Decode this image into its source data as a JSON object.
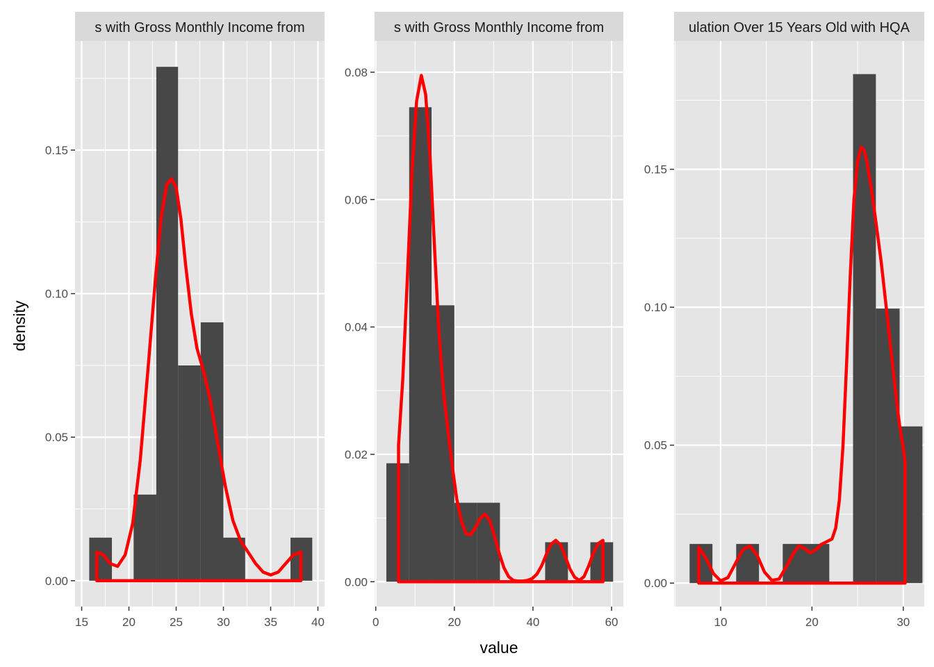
{
  "chart_data": {
    "type": "histogram",
    "xlabel": "value",
    "ylabel": "density",
    "colors": {
      "panel_bg": "#e5e5e5",
      "strip_bg": "#d9d9d9",
      "grid": "#ffffff",
      "bar": "#474747",
      "density": "#ff0000"
    },
    "panels": [
      {
        "strip_title": "s with Gross Monthly Income from",
        "xlim": [
          14.3,
          40.7
        ],
        "ylim": [
          -0.009,
          0.188
        ],
        "xticks": [
          15,
          20,
          25,
          30,
          35,
          40
        ],
        "yticks": [
          0.0,
          0.05,
          0.1,
          0.15
        ],
        "ytick_labels": [
          "0.00",
          "0.05",
          "0.10",
          "0.15"
        ],
        "bars": [
          {
            "x0": 15.8,
            "x1": 18.2,
            "density": 0.015
          },
          {
            "x0": 20.5,
            "x1": 22.9,
            "density": 0.03
          },
          {
            "x0": 22.9,
            "x1": 25.2,
            "density": 0.179
          },
          {
            "x0": 25.2,
            "x1": 27.6,
            "density": 0.075
          },
          {
            "x0": 27.6,
            "x1": 30.0,
            "density": 0.09
          },
          {
            "x0": 30.0,
            "x1": 32.3,
            "density": 0.015
          },
          {
            "x0": 37.1,
            "x1": 39.4,
            "density": 0.015
          }
        ],
        "density": {
          "x": [
            16.6,
            17.3,
            18.0,
            18.8,
            19.6,
            20.4,
            21.2,
            22.0,
            22.8,
            23.4,
            24.0,
            24.5,
            25.0,
            25.5,
            26.0,
            26.6,
            27.2,
            27.9,
            28.6,
            29.4,
            30.2,
            31.0,
            31.8,
            32.6,
            33.4,
            34.2,
            35.0,
            35.8,
            36.6,
            37.4,
            38.2
          ],
          "y": [
            0.01,
            0.009,
            0.006,
            0.005,
            0.009,
            0.02,
            0.042,
            0.073,
            0.105,
            0.126,
            0.138,
            0.14,
            0.137,
            0.126,
            0.11,
            0.093,
            0.081,
            0.073,
            0.063,
            0.048,
            0.033,
            0.021,
            0.014,
            0.01,
            0.006,
            0.003,
            0.002,
            0.003,
            0.006,
            0.009,
            0.01
          ]
        }
      },
      {
        "strip_title": "s with Gross Monthly Income from",
        "xlim": [
          -0.3,
          63.0
        ],
        "ylim": [
          -0.0039,
          0.0849
        ],
        "xticks": [
          0,
          20,
          40,
          60
        ],
        "yticks": [
          0.0,
          0.02,
          0.04,
          0.06,
          0.08
        ],
        "ytick_labels": [
          "0.00",
          "0.02",
          "0.04",
          "0.06",
          "0.08"
        ],
        "bars": [
          {
            "x0": 2.7,
            "x1": 8.5,
            "density": 0.0186
          },
          {
            "x0": 8.5,
            "x1": 14.2,
            "density": 0.0745
          },
          {
            "x0": 14.2,
            "x1": 20.0,
            "density": 0.0434
          },
          {
            "x0": 20.0,
            "x1": 25.8,
            "density": 0.0124
          },
          {
            "x0": 25.8,
            "x1": 31.6,
            "density": 0.0124
          },
          {
            "x0": 43.1,
            "x1": 48.9,
            "density": 0.0062
          },
          {
            "x0": 54.6,
            "x1": 60.4,
            "density": 0.0062
          }
        ],
        "density": {
          "x": [
            5.8,
            6.9,
            8.0,
            9.2,
            10.4,
            11.6,
            12.7,
            13.8,
            14.9,
            16.0,
            17.2,
            18.4,
            19.5,
            20.6,
            21.8,
            23.0,
            24.2,
            25.4,
            26.6,
            27.8,
            29.0,
            30.2,
            31.4,
            32.6,
            33.8,
            35.0,
            36.2,
            37.4,
            38.6,
            39.8,
            41.0,
            42.2,
            43.4,
            44.6,
            45.8,
            47.0,
            48.2,
            49.4,
            50.6,
            51.8,
            53.0,
            54.2,
            55.4,
            56.6,
            57.8
          ],
          "y": [
            0.0215,
            0.032,
            0.047,
            0.064,
            0.0755,
            0.0795,
            0.0765,
            0.067,
            0.053,
            0.04,
            0.03,
            0.0235,
            0.018,
            0.013,
            0.0095,
            0.0075,
            0.0074,
            0.0085,
            0.01,
            0.0106,
            0.0096,
            0.0072,
            0.0045,
            0.0022,
            0.0008,
            0.0002,
            0.0001,
            0.0001,
            0.0002,
            0.0005,
            0.0012,
            0.0025,
            0.0043,
            0.0059,
            0.0065,
            0.0058,
            0.004,
            0.002,
            0.0007,
            0.0002,
            0.0008,
            0.0025,
            0.0045,
            0.006,
            0.0065
          ]
        }
      },
      {
        "strip_title": "ulation Over 15 Years Old with HQA",
        "xlim": [
          4.9,
          32.3
        ],
        "ylim": [
          -0.0085,
          0.1965
        ],
        "xticks": [
          10,
          20,
          30
        ],
        "yticks": [
          0.0,
          0.05,
          0.1,
          0.15
        ],
        "ytick_labels": [
          "0.00",
          "0.05",
          "0.10",
          "0.15"
        ],
        "bars": [
          {
            "x0": 6.6,
            "x1": 9.1,
            "density": 0.0142
          },
          {
            "x0": 11.7,
            "x1": 14.2,
            "density": 0.0142
          },
          {
            "x0": 16.8,
            "x1": 19.4,
            "density": 0.0142
          },
          {
            "x0": 19.4,
            "x1": 21.9,
            "density": 0.0142
          },
          {
            "x0": 24.5,
            "x1": 27.0,
            "density": 0.1845
          },
          {
            "x0": 27.0,
            "x1": 29.6,
            "density": 0.0995
          },
          {
            "x0": 29.6,
            "x1": 32.1,
            "density": 0.0568
          }
        ],
        "density": {
          "x": [
            7.6,
            8.4,
            9.2,
            10.0,
            10.8,
            11.6,
            12.4,
            13.2,
            14.0,
            14.8,
            15.6,
            16.4,
            17.2,
            18.0,
            18.6,
            19.2,
            19.8,
            20.4,
            21.0,
            21.6,
            22.2,
            22.6,
            23.0,
            23.4,
            23.8,
            24.2,
            24.6,
            25.0,
            25.4,
            25.7,
            26.0,
            26.4,
            26.8,
            27.2,
            27.6,
            28.0,
            28.4,
            28.8,
            29.2,
            29.6,
            30.0,
            30.2
          ],
          "y": [
            0.013,
            0.009,
            0.0035,
            0.0008,
            0.002,
            0.007,
            0.012,
            0.0135,
            0.01,
            0.004,
            0.001,
            0.0015,
            0.006,
            0.011,
            0.0135,
            0.0125,
            0.011,
            0.012,
            0.014,
            0.015,
            0.016,
            0.02,
            0.03,
            0.05,
            0.08,
            0.112,
            0.139,
            0.153,
            0.158,
            0.157,
            0.153,
            0.145,
            0.136,
            0.126,
            0.116,
            0.104,
            0.092,
            0.08,
            0.068,
            0.057,
            0.049,
            0.044
          ]
        }
      }
    ]
  }
}
